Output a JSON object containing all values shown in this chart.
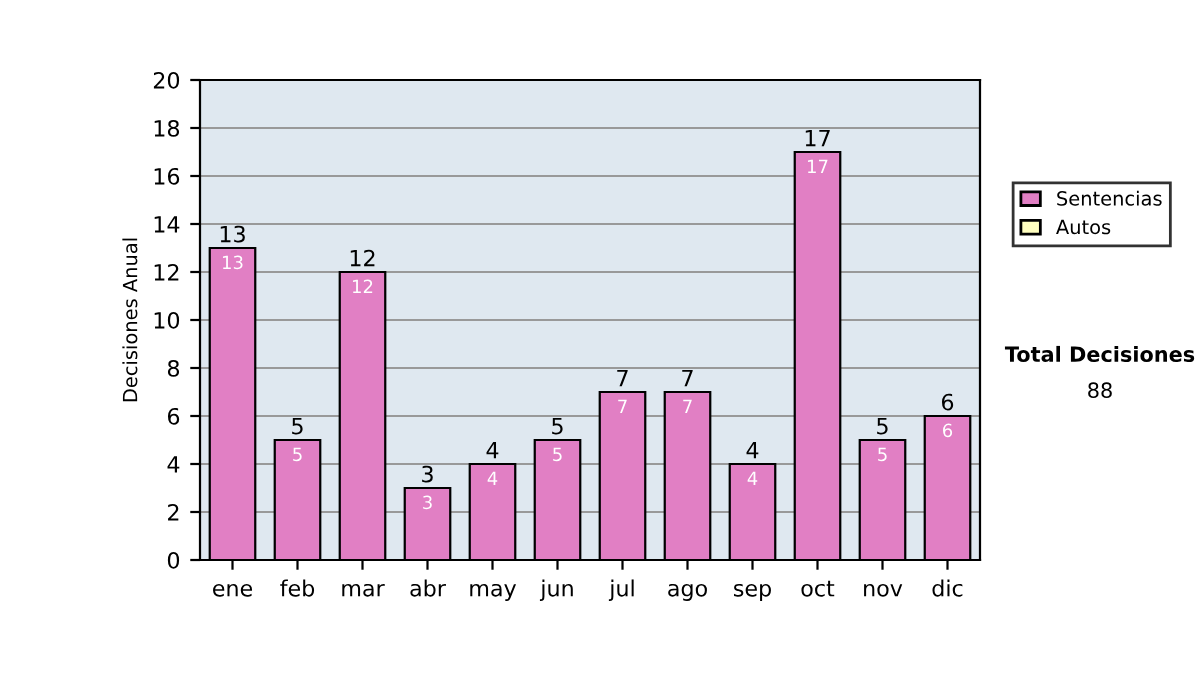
{
  "chart_data": {
    "type": "bar",
    "ylabel": "Decisiones Anual",
    "categories": [
      "ene",
      "feb",
      "mar",
      "abr",
      "may",
      "jun",
      "jul",
      "ago",
      "sep",
      "oct",
      "nov",
      "dic"
    ],
    "series": [
      {
        "name": "Sentencias",
        "color": "#e17fc4",
        "values": [
          13,
          5,
          12,
          3,
          4,
          5,
          7,
          7,
          4,
          17,
          5,
          6
        ],
        "value_labels": [
          "13",
          "5",
          "12",
          "3",
          "4",
          "5",
          "7",
          "7",
          "4",
          "17",
          "5",
          "6"
        ]
      },
      {
        "name": "Autos",
        "color": "#ffffc0",
        "values": [
          0,
          0,
          0,
          0,
          0,
          0,
          0,
          0,
          0,
          0,
          0,
          0
        ]
      }
    ],
    "stacked": true,
    "totals": [
      "13",
      "5",
      "12",
      "3",
      "4",
      "5",
      "7",
      "7",
      "4",
      "17",
      "5",
      "6"
    ],
    "ylim": [
      0,
      20
    ],
    "yticks": [
      0,
      2,
      4,
      6,
      8,
      10,
      12,
      14,
      16,
      18,
      20
    ],
    "grid": "y",
    "legend": "right",
    "annotations": [
      "Total Decisiones",
      "88"
    ]
  }
}
